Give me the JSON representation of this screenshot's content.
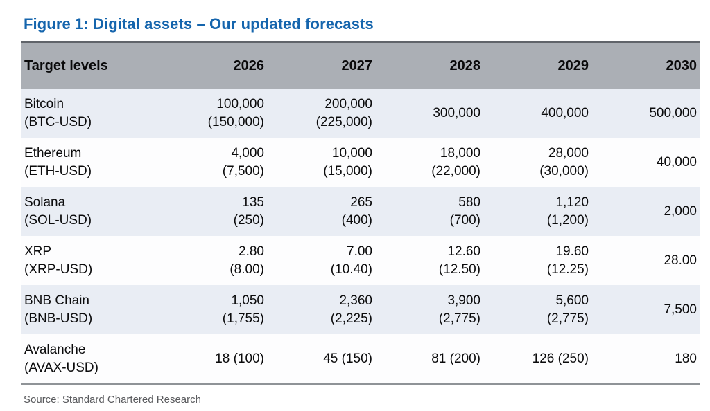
{
  "chart_data": {
    "type": "table",
    "title": "Figure 1: Digital assets – Our updated forecasts",
    "columns": [
      "Target levels",
      "2026",
      "2027",
      "2028",
      "2029",
      "2030"
    ],
    "rows": [
      {
        "name": "Bitcoin",
        "ticker": "(BTC-USD)",
        "values": [
          {
            "main": "100,000",
            "sub": "(150,000)"
          },
          {
            "main": "200,000",
            "sub": "(225,000)"
          },
          {
            "main": "300,000"
          },
          {
            "main": "400,000"
          },
          {
            "main": "500,000"
          }
        ]
      },
      {
        "name": "Ethereum",
        "ticker": "(ETH-USD)",
        "values": [
          {
            "main": "4,000",
            "sub": "(7,500)"
          },
          {
            "main": "10,000",
            "sub": "(15,000)"
          },
          {
            "main": "18,000",
            "sub": "(22,000)"
          },
          {
            "main": "28,000",
            "sub": "(30,000)"
          },
          {
            "main": "40,000"
          }
        ]
      },
      {
        "name": "Solana",
        "ticker": "(SOL-USD)",
        "values": [
          {
            "main": "135",
            "sub": "(250)"
          },
          {
            "main": "265",
            "sub": "(400)"
          },
          {
            "main": "580",
            "sub": "(700)"
          },
          {
            "main": "1,120",
            "sub": "(1,200)"
          },
          {
            "main": "2,000"
          }
        ]
      },
      {
        "name": "XRP",
        "ticker": "(XRP-USD)",
        "values": [
          {
            "main": "2.80",
            "sub": "(8.00)"
          },
          {
            "main": "7.00",
            "sub": "(10.40)"
          },
          {
            "main": "12.60",
            "sub": "(12.50)"
          },
          {
            "main": "19.60",
            "sub": "(12.25)"
          },
          {
            "main": "28.00"
          }
        ]
      },
      {
        "name": "BNB Chain",
        "ticker": "(BNB-USD)",
        "values": [
          {
            "main": "1,050",
            "sub": "(1,755)"
          },
          {
            "main": "2,360",
            "sub": "(2,225)"
          },
          {
            "main": "3,900",
            "sub": "(2,775)"
          },
          {
            "main": "5,600",
            "sub": "(2,775)"
          },
          {
            "main": "7,500"
          }
        ]
      },
      {
        "name": "Avalanche",
        "ticker": "(AVAX-USD)",
        "values": [
          {
            "main": "18 (100)"
          },
          {
            "main": "45 (150)"
          },
          {
            "main": "81 (200)"
          },
          {
            "main": "126 (250)"
          },
          {
            "main": "180"
          }
        ]
      }
    ],
    "source": "Source: Standard Chartered Research",
    "colors": {
      "title_blue": "#1565ad",
      "header_bg": "#abafb5",
      "row_alt_bg": "#e9edf4",
      "row_bg": "#fdfdfe",
      "top_border": "#60646a",
      "bottom_border": "#8f9397",
      "source_gray": "#5a5b5e"
    }
  }
}
